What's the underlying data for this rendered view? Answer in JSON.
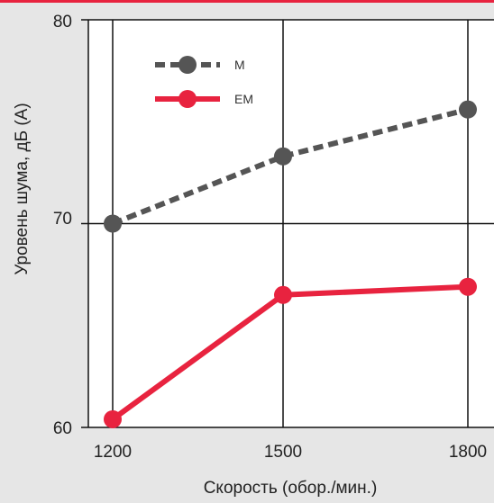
{
  "colors": {
    "background": "#e6e6e6",
    "top_bar": "#e8233f",
    "plot_area": "#ffffff",
    "grid": "#111111"
  },
  "chart_data": {
    "type": "line",
    "title": "",
    "xlabel": "Скорость (обор./мин.)",
    "ylabel": "Уровень шума, дБ (А)",
    "x": [
      1200,
      1500,
      1800
    ],
    "x_ticks": [
      "1200",
      "1500",
      "1800"
    ],
    "y_ticks": [
      "60",
      "70",
      "80"
    ],
    "ylim": [
      60,
      80
    ],
    "grid": true,
    "legend_position": "top-left",
    "series": [
      {
        "name": "M",
        "values": [
          70.0,
          73.3,
          75.6
        ],
        "color": "#555555",
        "style": "dashed"
      },
      {
        "name": "EM",
        "values": [
          60.4,
          66.5,
          66.9
        ],
        "color": "#e8233f",
        "style": "solid"
      }
    ]
  }
}
